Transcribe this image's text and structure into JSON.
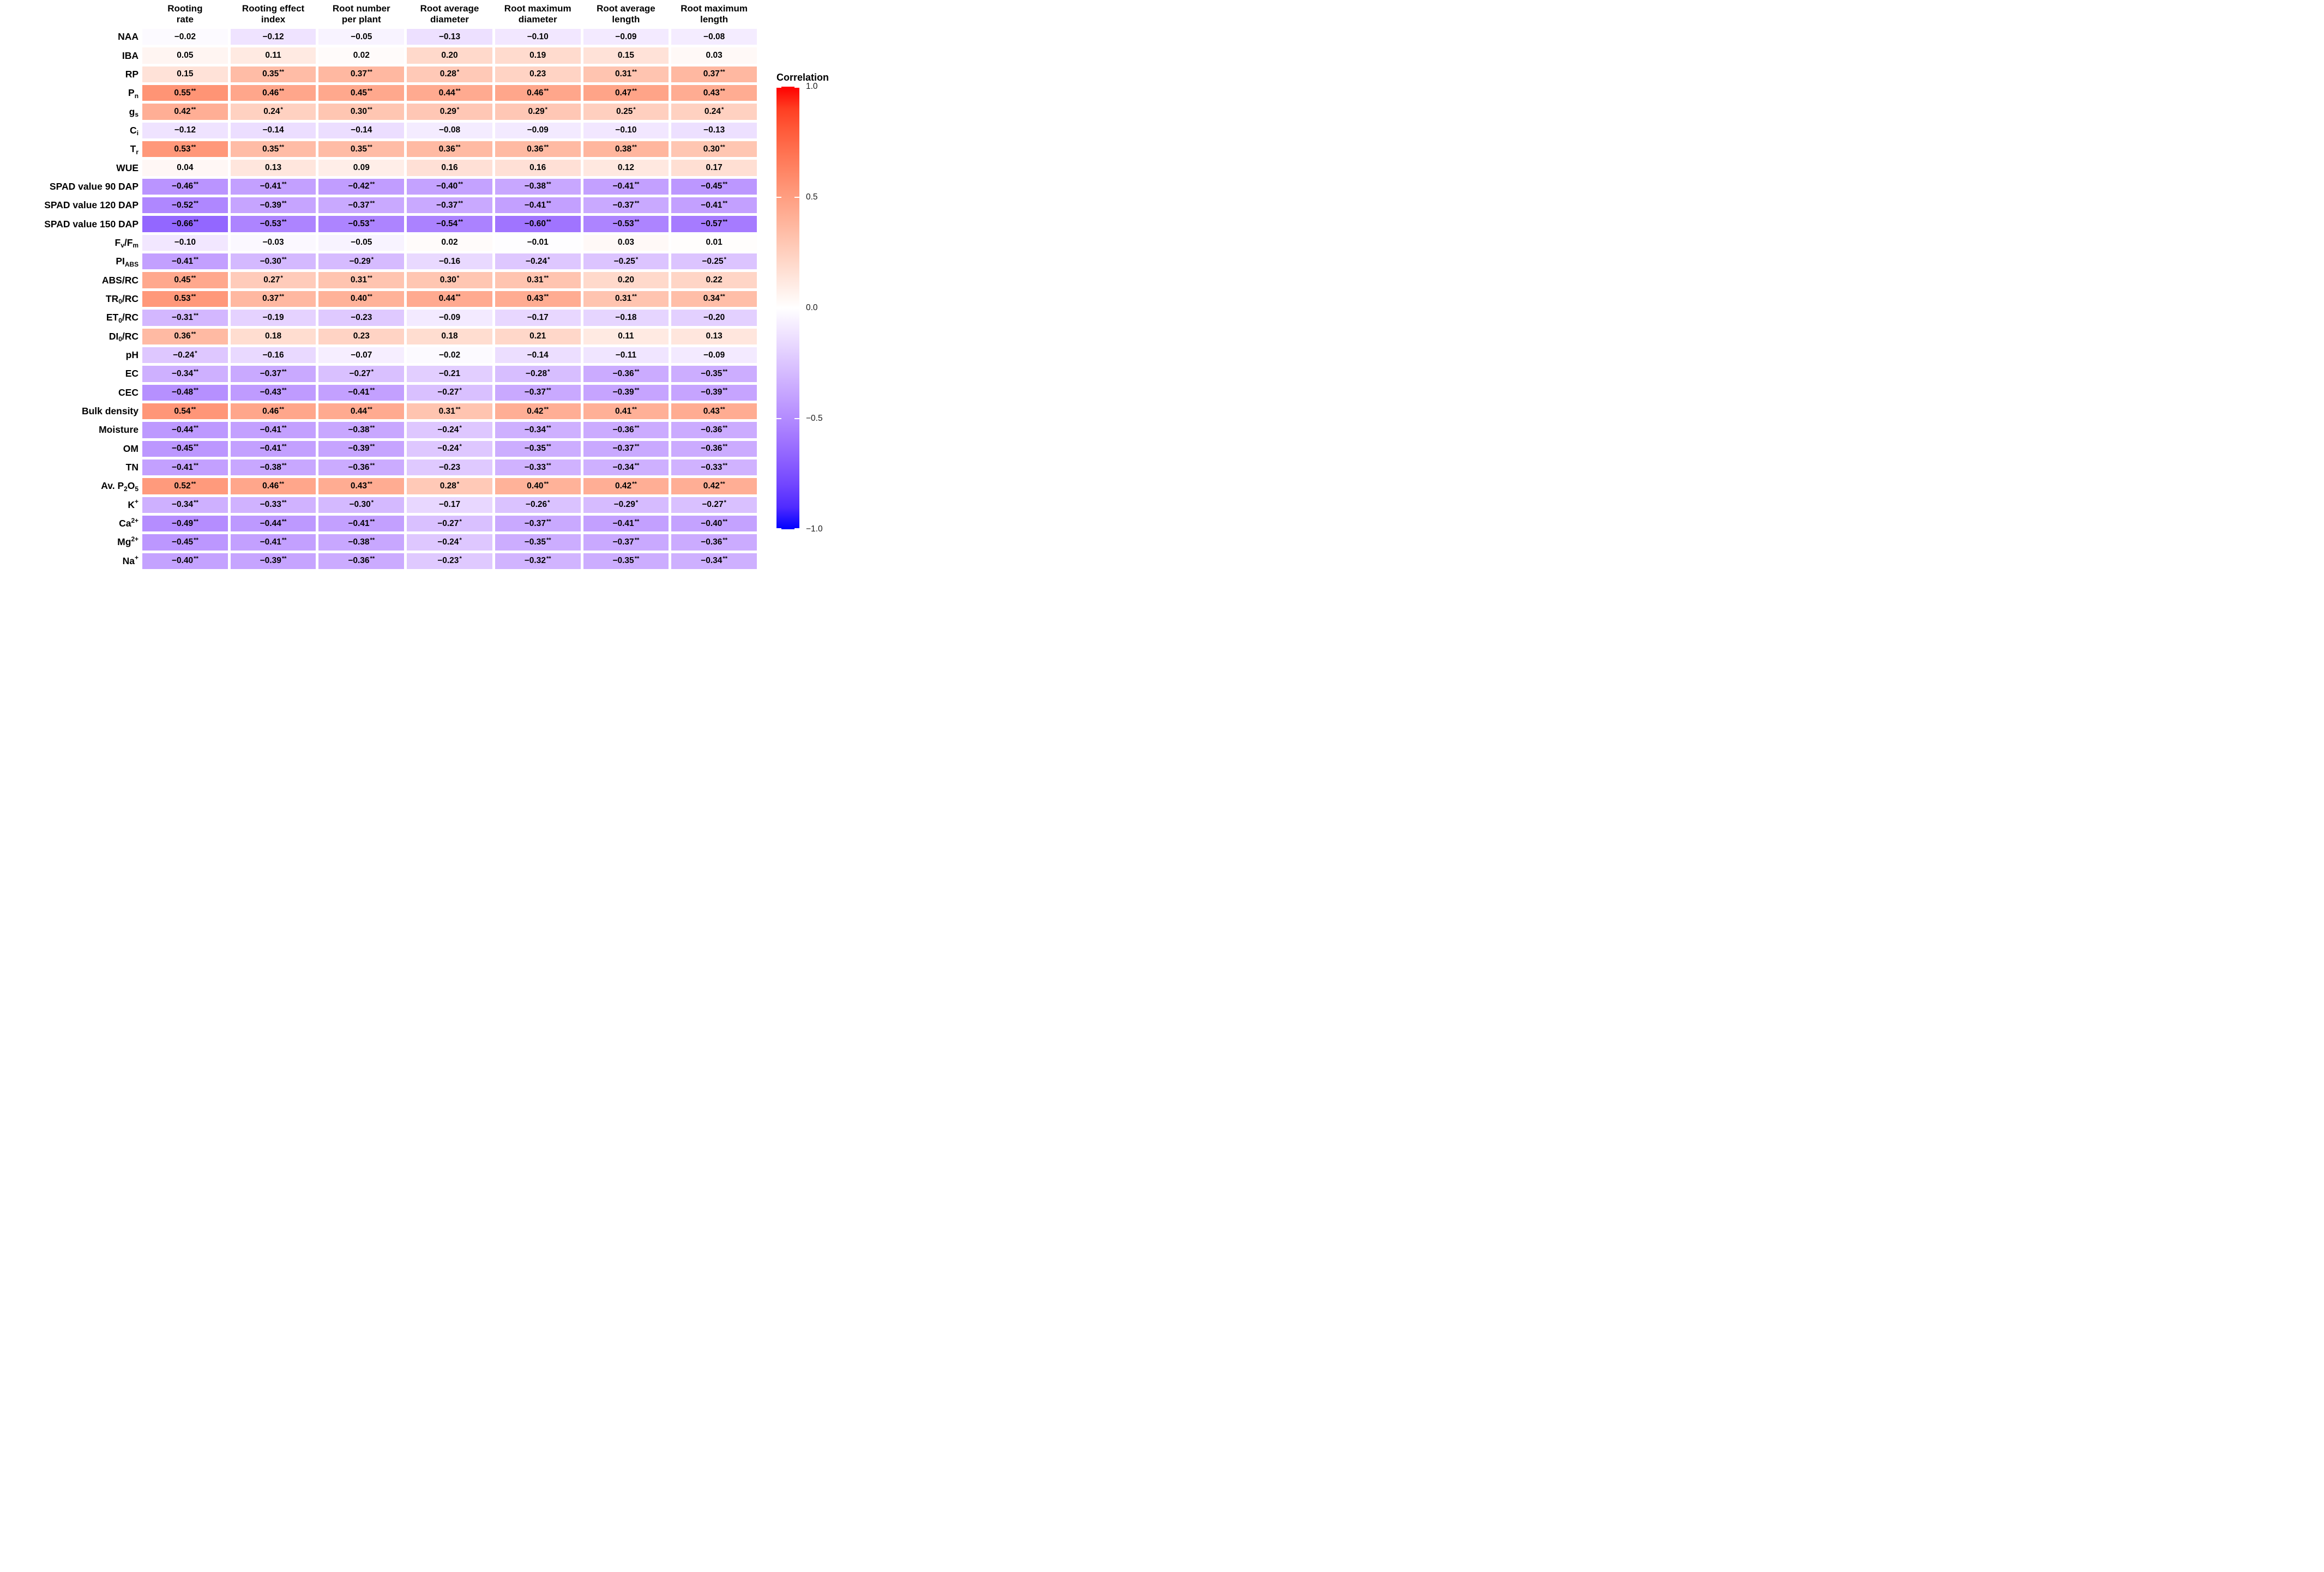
{
  "chart_data": {
    "type": "heatmap",
    "legend": {
      "title": "Correlation",
      "ticks": [
        "1.0",
        "0.5",
        "0.0",
        "-0.5",
        "-1.0"
      ],
      "range": [
        -1,
        1
      ],
      "colors": {
        "positive": "#FF0000",
        "zero": "#FFFFFF",
        "negative": "#0000FF"
      }
    },
    "columns": [
      {
        "line1": "Rooting",
        "line2": "rate"
      },
      {
        "line1": "Rooting effect",
        "line2": "index"
      },
      {
        "line1": "Root number",
        "line2": "per plant"
      },
      {
        "line1": "Root average",
        "line2": "diameter"
      },
      {
        "line1": "Root maximum",
        "line2": "diameter"
      },
      {
        "line1": "Root average",
        "line2": "length"
      },
      {
        "line1": "Root maximum",
        "line2": "length"
      }
    ],
    "rows": [
      {
        "id": "NAA",
        "segments": [
          [
            "t",
            "NAA"
          ]
        ],
        "values": [
          "-0.02",
          "-0.12",
          "-0.05",
          "-0.13",
          "-0.10",
          "-0.09",
          "-0.08"
        ]
      },
      {
        "id": "IBA",
        "segments": [
          [
            "t",
            "IBA"
          ]
        ],
        "values": [
          "0.05",
          "0.11",
          "0.02",
          "0.20",
          "0.19",
          "0.15",
          "0.03"
        ]
      },
      {
        "id": "RP",
        "segments": [
          [
            "t",
            "RP"
          ]
        ],
        "values": [
          "0.15",
          "0.35**",
          "0.37**",
          "0.28*",
          "0.23",
          "0.31**",
          "0.37**"
        ]
      },
      {
        "id": "Pn",
        "segments": [
          [
            "t",
            "P"
          ],
          [
            "s",
            "n"
          ]
        ],
        "values": [
          "0.55**",
          "0.46**",
          "0.45**",
          "0.44**",
          "0.46**",
          "0.47**",
          "0.43**"
        ]
      },
      {
        "id": "gs",
        "segments": [
          [
            "t",
            "g"
          ],
          [
            "s",
            "s"
          ]
        ],
        "values": [
          "0.42**",
          "0.24*",
          "0.30**",
          "0.29*",
          "0.29*",
          "0.25*",
          "0.24*"
        ]
      },
      {
        "id": "Ci",
        "segments": [
          [
            "t",
            "C"
          ],
          [
            "s",
            "i"
          ]
        ],
        "values": [
          "-0.12",
          "-0.14",
          "-0.14",
          "-0.08",
          "-0.09",
          "-0.10",
          "-0.13"
        ]
      },
      {
        "id": "Tr",
        "segments": [
          [
            "t",
            "T"
          ],
          [
            "s",
            "r"
          ]
        ],
        "values": [
          "0.53**",
          "0.35**",
          "0.35**",
          "0.36**",
          "0.36**",
          "0.38**",
          "0.30**"
        ]
      },
      {
        "id": "WUE",
        "segments": [
          [
            "t",
            "WUE"
          ]
        ],
        "values": [
          "0.04",
          "0.13",
          "0.09",
          "0.16",
          "0.16",
          "0.12",
          "0.17"
        ]
      },
      {
        "id": "SPAD value 90 DAP",
        "segments": [
          [
            "t",
            "SPAD value 90 DAP"
          ]
        ],
        "values": [
          "-0.46**",
          "-0.41**",
          "-0.42**",
          "-0.40**",
          "-0.38**",
          "-0.41**",
          "-0.45**"
        ]
      },
      {
        "id": "SPAD value 120 DAP",
        "segments": [
          [
            "t",
            "SPAD value 120 DAP"
          ]
        ],
        "values": [
          "-0.52**",
          "-0.39**",
          "-0.37**",
          "-0.37**",
          "-0.41**",
          "-0.37**",
          "-0.41**"
        ]
      },
      {
        "id": "SPAD value 150 DAP",
        "segments": [
          [
            "t",
            "SPAD value 150 DAP"
          ]
        ],
        "values": [
          "-0.66**",
          "-0.53**",
          "-0.53**",
          "-0.54**",
          "-0.60**",
          "-0.53**",
          "-0.57**"
        ]
      },
      {
        "id": "Fv/Fm",
        "segments": [
          [
            "t",
            "F"
          ],
          [
            "s",
            "v"
          ],
          [
            "t",
            "/F"
          ],
          [
            "s",
            "m"
          ]
        ],
        "values": [
          "-0.10",
          "-0.03",
          "-0.05",
          "0.02",
          "-0.01",
          "0.03",
          "0.01"
        ]
      },
      {
        "id": "PI ABS",
        "segments": [
          [
            "t",
            "PI"
          ],
          [
            "s",
            "ABS"
          ]
        ],
        "values": [
          "-0.41**",
          "-0.30**",
          "-0.29*",
          "-0.16",
          "-0.24*",
          "-0.25*",
          "-0.25*"
        ]
      },
      {
        "id": "ABS/RC",
        "segments": [
          [
            "t",
            "ABS/RC"
          ]
        ],
        "values": [
          "0.45**",
          "0.27*",
          "0.31**",
          "0.30*",
          "0.31**",
          "0.20",
          "0.22"
        ]
      },
      {
        "id": "TR0/RC",
        "segments": [
          [
            "t",
            "TR"
          ],
          [
            "s",
            "0"
          ],
          [
            "t",
            "/RC"
          ]
        ],
        "values": [
          "0.53**",
          "0.37**",
          "0.40**",
          "0.44**",
          "0.43**",
          "0.31**",
          "0.34**"
        ]
      },
      {
        "id": "ET0/RC",
        "segments": [
          [
            "t",
            "ET"
          ],
          [
            "s",
            "0"
          ],
          [
            "t",
            "/RC"
          ]
        ],
        "values": [
          "-0.31**",
          "-0.19",
          "-0.23",
          "-0.09",
          "-0.17",
          "-0.18",
          "-0.20"
        ]
      },
      {
        "id": "DI0/RC",
        "segments": [
          [
            "t",
            "DI"
          ],
          [
            "s",
            "0"
          ],
          [
            "t",
            "/RC"
          ]
        ],
        "values": [
          "0.36**",
          "0.18",
          "0.23",
          "0.18",
          "0.21",
          "0.11",
          "0.13"
        ]
      },
      {
        "id": "pH",
        "segments": [
          [
            "t",
            "pH"
          ]
        ],
        "values": [
          "-0.24*",
          "-0.16",
          "-0.07",
          "-0.02",
          "-0.14",
          "-0.11",
          "-0.09"
        ]
      },
      {
        "id": "EC",
        "segments": [
          [
            "t",
            "EC"
          ]
        ],
        "values": [
          "-0.34**",
          "-0.37**",
          "-0.27*",
          "-0.21",
          "-0.28*",
          "-0.36**",
          "-0.35**"
        ]
      },
      {
        "id": "CEC",
        "segments": [
          [
            "t",
            "CEC"
          ]
        ],
        "values": [
          "-0.48**",
          "-0.43**",
          "-0.41**",
          "-0.27*",
          "-0.37**",
          "-0.39**",
          "-0.39**"
        ]
      },
      {
        "id": "Bulk density",
        "segments": [
          [
            "t",
            "Bulk density"
          ]
        ],
        "values": [
          "0.54**",
          "0.46**",
          "0.44**",
          "0.31**",
          "0.42**",
          "0.41**",
          "0.43**"
        ]
      },
      {
        "id": "Moisture",
        "segments": [
          [
            "t",
            "Moisture"
          ]
        ],
        "values": [
          "-0.44**",
          "-0.41**",
          "-0.38**",
          "-0.24*",
          "-0.34**",
          "-0.36**",
          "-0.36**"
        ]
      },
      {
        "id": "OM",
        "segments": [
          [
            "t",
            "OM"
          ]
        ],
        "values": [
          "-0.45**",
          "-0.41**",
          "-0.39**",
          "-0.24*",
          "-0.35**",
          "-0.37**",
          "-0.36**"
        ]
      },
      {
        "id": "TN",
        "segments": [
          [
            "t",
            "TN"
          ]
        ],
        "values": [
          "-0.41**",
          "-0.38**",
          "-0.36**",
          "-0.23",
          "-0.33**",
          "-0.34**",
          "-0.33**"
        ]
      },
      {
        "id": "Av. P2O5",
        "segments": [
          [
            "t",
            "Av. P"
          ],
          [
            "s",
            "2"
          ],
          [
            "t",
            "O"
          ],
          [
            "s",
            "5"
          ]
        ],
        "values": [
          "0.52**",
          "0.46**",
          "0.43**",
          "0.28*",
          "0.40**",
          "0.42**",
          "0.42**"
        ]
      },
      {
        "id": "K+",
        "segments": [
          [
            "t",
            "K"
          ],
          [
            "u",
            "+"
          ]
        ],
        "values": [
          "-0.34**",
          "-0.33**",
          "-0.30*",
          "-0.17",
          "-0.26*",
          "-0.29*",
          "-0.27*"
        ]
      },
      {
        "id": "Ca2+",
        "segments": [
          [
            "t",
            "Ca"
          ],
          [
            "u",
            "2+"
          ]
        ],
        "values": [
          "-0.49**",
          "-0.44**",
          "-0.41**",
          "-0.27*",
          "-0.37**",
          "-0.41**",
          "-0.40**"
        ]
      },
      {
        "id": "Mg2+",
        "segments": [
          [
            "t",
            "Mg"
          ],
          [
            "u",
            "2+"
          ]
        ],
        "values": [
          "-0.45**",
          "-0.41**",
          "-0.38**",
          "-0.24*",
          "-0.35**",
          "-0.37**",
          "-0.36**"
        ]
      },
      {
        "id": "Na+",
        "segments": [
          [
            "t",
            "Na"
          ],
          [
            "u",
            "+"
          ]
        ],
        "values": [
          "-0.40**",
          "-0.39**",
          "-0.36**",
          "-0.23*",
          "-0.32**",
          "-0.35**",
          "-0.34**"
        ]
      }
    ]
  }
}
